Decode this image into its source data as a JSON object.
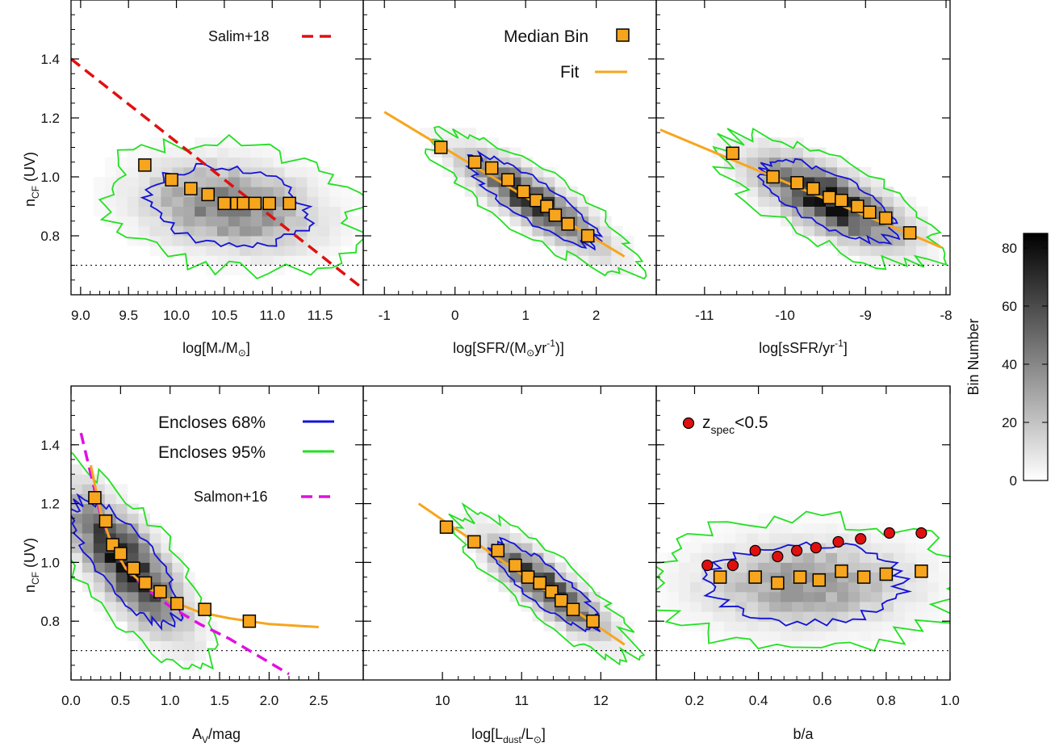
{
  "colors": {
    "contour68": "#1212d8",
    "contour95": "#22e022",
    "fit": "#f7a51d",
    "median_fill": "#f7a51d",
    "salim": "#e01010",
    "salmon": "#e010e0",
    "zspec_fill": "#e01010",
    "ref_line": "#222222"
  },
  "y_axis": {
    "label_main": "n",
    "label_sub": "CF",
    "label_tail": " (UV)",
    "ticks": [
      "0.8",
      "1.0",
      "1.2",
      "1.4"
    ],
    "tick_values": [
      0.8,
      1.0,
      1.2,
      1.4
    ],
    "ylim": [
      0.6,
      1.6
    ],
    "ref_line": 0.7
  },
  "colorbar": {
    "label": "Bin Number",
    "ticks": [
      "0",
      "20",
      "40",
      "60",
      "80"
    ],
    "tick_values": [
      0,
      20,
      40,
      60,
      80
    ],
    "range": [
      0,
      85
    ]
  },
  "legends": {
    "median_bin": "Median Bin",
    "fit": "Fit",
    "salim": "Salim+18",
    "salmon": "Salmon+16",
    "enclose68": "Encloses 68%",
    "enclose95": "Encloses 95%",
    "zspec_main": "z",
    "zspec_sub": "spec",
    "zspec_tail": "<0.5"
  },
  "panels": [
    {
      "xlabel": {
        "main": "log[M",
        "sub": "*",
        "mid": "/M",
        "sub2": "⊙",
        "tail": "]"
      },
      "x_ticks": [
        "9.0",
        "9.5",
        "10.0",
        "10.5",
        "11.0",
        "11.5"
      ],
      "x_tick_values": [
        9.0,
        9.5,
        10.0,
        10.5,
        11.0,
        11.5
      ]
    },
    {
      "xlabel": {
        "main": "log[SFR/(M",
        "sub": "⊙",
        "mid": "yr",
        "sup": "-1",
        "tail": ")]"
      },
      "x_ticks": [
        "-1",
        "0",
        "1",
        "2"
      ],
      "x_tick_values": [
        -1,
        0,
        1,
        2
      ]
    },
    {
      "xlabel": {
        "main": "log[sSFR/yr",
        "sup": "-1",
        "tail": "]"
      },
      "x_ticks": [
        "-11",
        "-10",
        "-9",
        "-8"
      ],
      "x_tick_values": [
        -11,
        -10,
        -9,
        -8
      ]
    },
    {
      "xlabel": {
        "main": "A",
        "sub": "V",
        "tail": "/mag"
      },
      "x_ticks": [
        "0.0",
        "0.5",
        "1.0",
        "1.5",
        "2.0",
        "2.5"
      ],
      "x_tick_values": [
        0.0,
        0.5,
        1.0,
        1.5,
        2.0,
        2.5
      ]
    },
    {
      "xlabel": {
        "main": "log[L",
        "sub": "dust",
        "mid": "/L",
        "sub2": "⊙",
        "tail": "]"
      },
      "x_ticks": [
        "10",
        "11",
        "12"
      ],
      "x_tick_values": [
        10,
        11,
        12
      ]
    },
    {
      "xlabel": {
        "main": "b/a"
      },
      "x_ticks": [
        "0.2",
        "0.4",
        "0.6",
        "0.8",
        "1.0"
      ],
      "x_tick_values": [
        0.2,
        0.4,
        0.6,
        0.8,
        1.0
      ]
    }
  ],
  "chart_data": [
    {
      "type": "scatter",
      "xlabel": "log[M*/M⊙]",
      "ylabel": "nCF (UV)",
      "xlim": [
        8.9,
        11.95
      ],
      "ylim": [
        0.6,
        1.6
      ],
      "median_bins": {
        "x": [
          9.67,
          9.95,
          10.15,
          10.33,
          10.5,
          10.63,
          10.7,
          10.82,
          10.97,
          11.18
        ],
        "y": [
          1.04,
          0.99,
          0.96,
          0.94,
          0.91,
          0.91,
          0.91,
          0.91,
          0.91,
          0.91
        ]
      },
      "reference_lines": [
        {
          "name": "Salim+18",
          "style": "dashed",
          "x": [
            8.9,
            11.95
          ],
          "y": [
            1.4,
            0.62
          ]
        }
      ],
      "histogram": {
        "center": [
          10.55,
          0.9
        ],
        "sx": 0.55,
        "sy": 0.09,
        "corr": -0.2,
        "peak": 45
      }
    },
    {
      "type": "scatter",
      "xlabel": "log[SFR/(M⊙yr-1)]",
      "ylabel": "nCF (UV)",
      "xlim": [
        -1.3,
        2.85
      ],
      "ylim": [
        0.6,
        1.6
      ],
      "median_bins": {
        "x": [
          -0.2,
          0.28,
          0.52,
          0.75,
          0.97,
          1.15,
          1.3,
          1.42,
          1.6,
          1.88
        ],
        "y": [
          1.1,
          1.05,
          1.03,
          0.99,
          0.95,
          0.92,
          0.9,
          0.87,
          0.84,
          0.8
        ]
      },
      "fit": {
        "x": [
          -1.0,
          2.4
        ],
        "y": [
          1.22,
          0.73
        ]
      },
      "histogram": {
        "center": [
          1.1,
          0.92
        ],
        "sx": 0.6,
        "sy": 0.1,
        "corr": -0.85,
        "peak": 70
      }
    },
    {
      "type": "scatter",
      "xlabel": "log[sSFR/yr-1]",
      "ylabel": "nCF (UV)",
      "xlim": [
        -11.6,
        -7.95
      ],
      "ylim": [
        0.6,
        1.6
      ],
      "median_bins": {
        "x": [
          -10.65,
          -10.15,
          -9.85,
          -9.65,
          -9.45,
          -9.3,
          -9.1,
          -8.95,
          -8.75,
          -8.45
        ],
        "y": [
          1.08,
          1.0,
          0.98,
          0.96,
          0.93,
          0.92,
          0.9,
          0.88,
          0.86,
          0.81
        ]
      },
      "fit": {
        "x": [
          -11.55,
          -8.05
        ],
        "y": [
          1.16,
          0.76
        ]
      },
      "histogram": {
        "center": [
          -9.45,
          0.92
        ],
        "sx": 0.55,
        "sy": 0.09,
        "corr": -0.7,
        "peak": 80
      }
    },
    {
      "type": "scatter",
      "xlabel": "AV/mag",
      "ylabel": "nCF (UV)",
      "xlim": [
        0.0,
        2.95
      ],
      "ylim": [
        0.6,
        1.6
      ],
      "median_bins": {
        "x": [
          0.24,
          0.35,
          0.42,
          0.5,
          0.63,
          0.75,
          0.9,
          1.07,
          1.35,
          1.8
        ],
        "y": [
          1.22,
          1.14,
          1.06,
          1.03,
          0.98,
          0.93,
          0.9,
          0.86,
          0.84,
          0.8
        ]
      },
      "fit": {
        "x": [
          0.2,
          0.3,
          0.4,
          0.55,
          0.75,
          1.0,
          1.3,
          1.6,
          2.0,
          2.5
        ],
        "y": [
          1.33,
          1.17,
          1.07,
          0.98,
          0.92,
          0.87,
          0.83,
          0.81,
          0.79,
          0.78
        ]
      },
      "reference_lines": [
        {
          "name": "Salmon+16",
          "style": "dashed",
          "x": [
            0.1,
            0.2,
            0.3,
            0.45,
            0.6,
            0.8,
            1.0,
            1.3,
            1.6,
            1.9,
            2.2
          ],
          "y": [
            1.44,
            1.3,
            1.16,
            1.03,
            0.96,
            0.9,
            0.85,
            0.79,
            0.74,
            0.68,
            0.62
          ]
        }
      ],
      "histogram": {
        "center": [
          0.55,
          1.0
        ],
        "sx": 0.35,
        "sy": 0.14,
        "corr": -0.75,
        "peak": 80
      }
    },
    {
      "type": "scatter",
      "xlabel": "log[Ldust/L⊙]",
      "ylabel": "nCF (UV)",
      "xlim": [
        9.0,
        12.7
      ],
      "ylim": [
        0.6,
        1.6
      ],
      "median_bins": {
        "x": [
          10.05,
          10.4,
          10.7,
          10.92,
          11.08,
          11.23,
          11.38,
          11.5,
          11.65,
          11.9
        ],
        "y": [
          1.12,
          1.07,
          1.04,
          0.99,
          0.95,
          0.93,
          0.9,
          0.87,
          0.84,
          0.8
        ]
      },
      "fit": {
        "x": [
          9.7,
          12.3
        ],
        "y": [
          1.2,
          0.72
        ]
      },
      "histogram": {
        "center": [
          11.3,
          0.92
        ],
        "sx": 0.45,
        "sy": 0.1,
        "corr": -0.85,
        "peak": 70
      }
    },
    {
      "type": "scatter",
      "xlabel": "b/a",
      "ylabel": "nCF (UV)",
      "xlim": [
        0.08,
        1.0
      ],
      "ylim": [
        0.6,
        1.6
      ],
      "median_bins": {
        "x": [
          0.28,
          0.39,
          0.46,
          0.53,
          0.59,
          0.66,
          0.73,
          0.8,
          0.91
        ],
        "y": [
          0.95,
          0.95,
          0.93,
          0.95,
          0.94,
          0.97,
          0.95,
          0.96,
          0.97
        ]
      },
      "zspec": {
        "name": "zspec<0.5",
        "x": [
          0.24,
          0.32,
          0.39,
          0.46,
          0.52,
          0.58,
          0.65,
          0.72,
          0.81,
          0.91
        ],
        "y": [
          0.99,
          0.99,
          1.04,
          1.02,
          1.04,
          1.05,
          1.07,
          1.08,
          1.1,
          1.1
        ]
      },
      "histogram": {
        "center": [
          0.55,
          0.93
        ],
        "sx": 0.2,
        "sy": 0.09,
        "corr": 0.0,
        "peak": 35
      }
    }
  ]
}
